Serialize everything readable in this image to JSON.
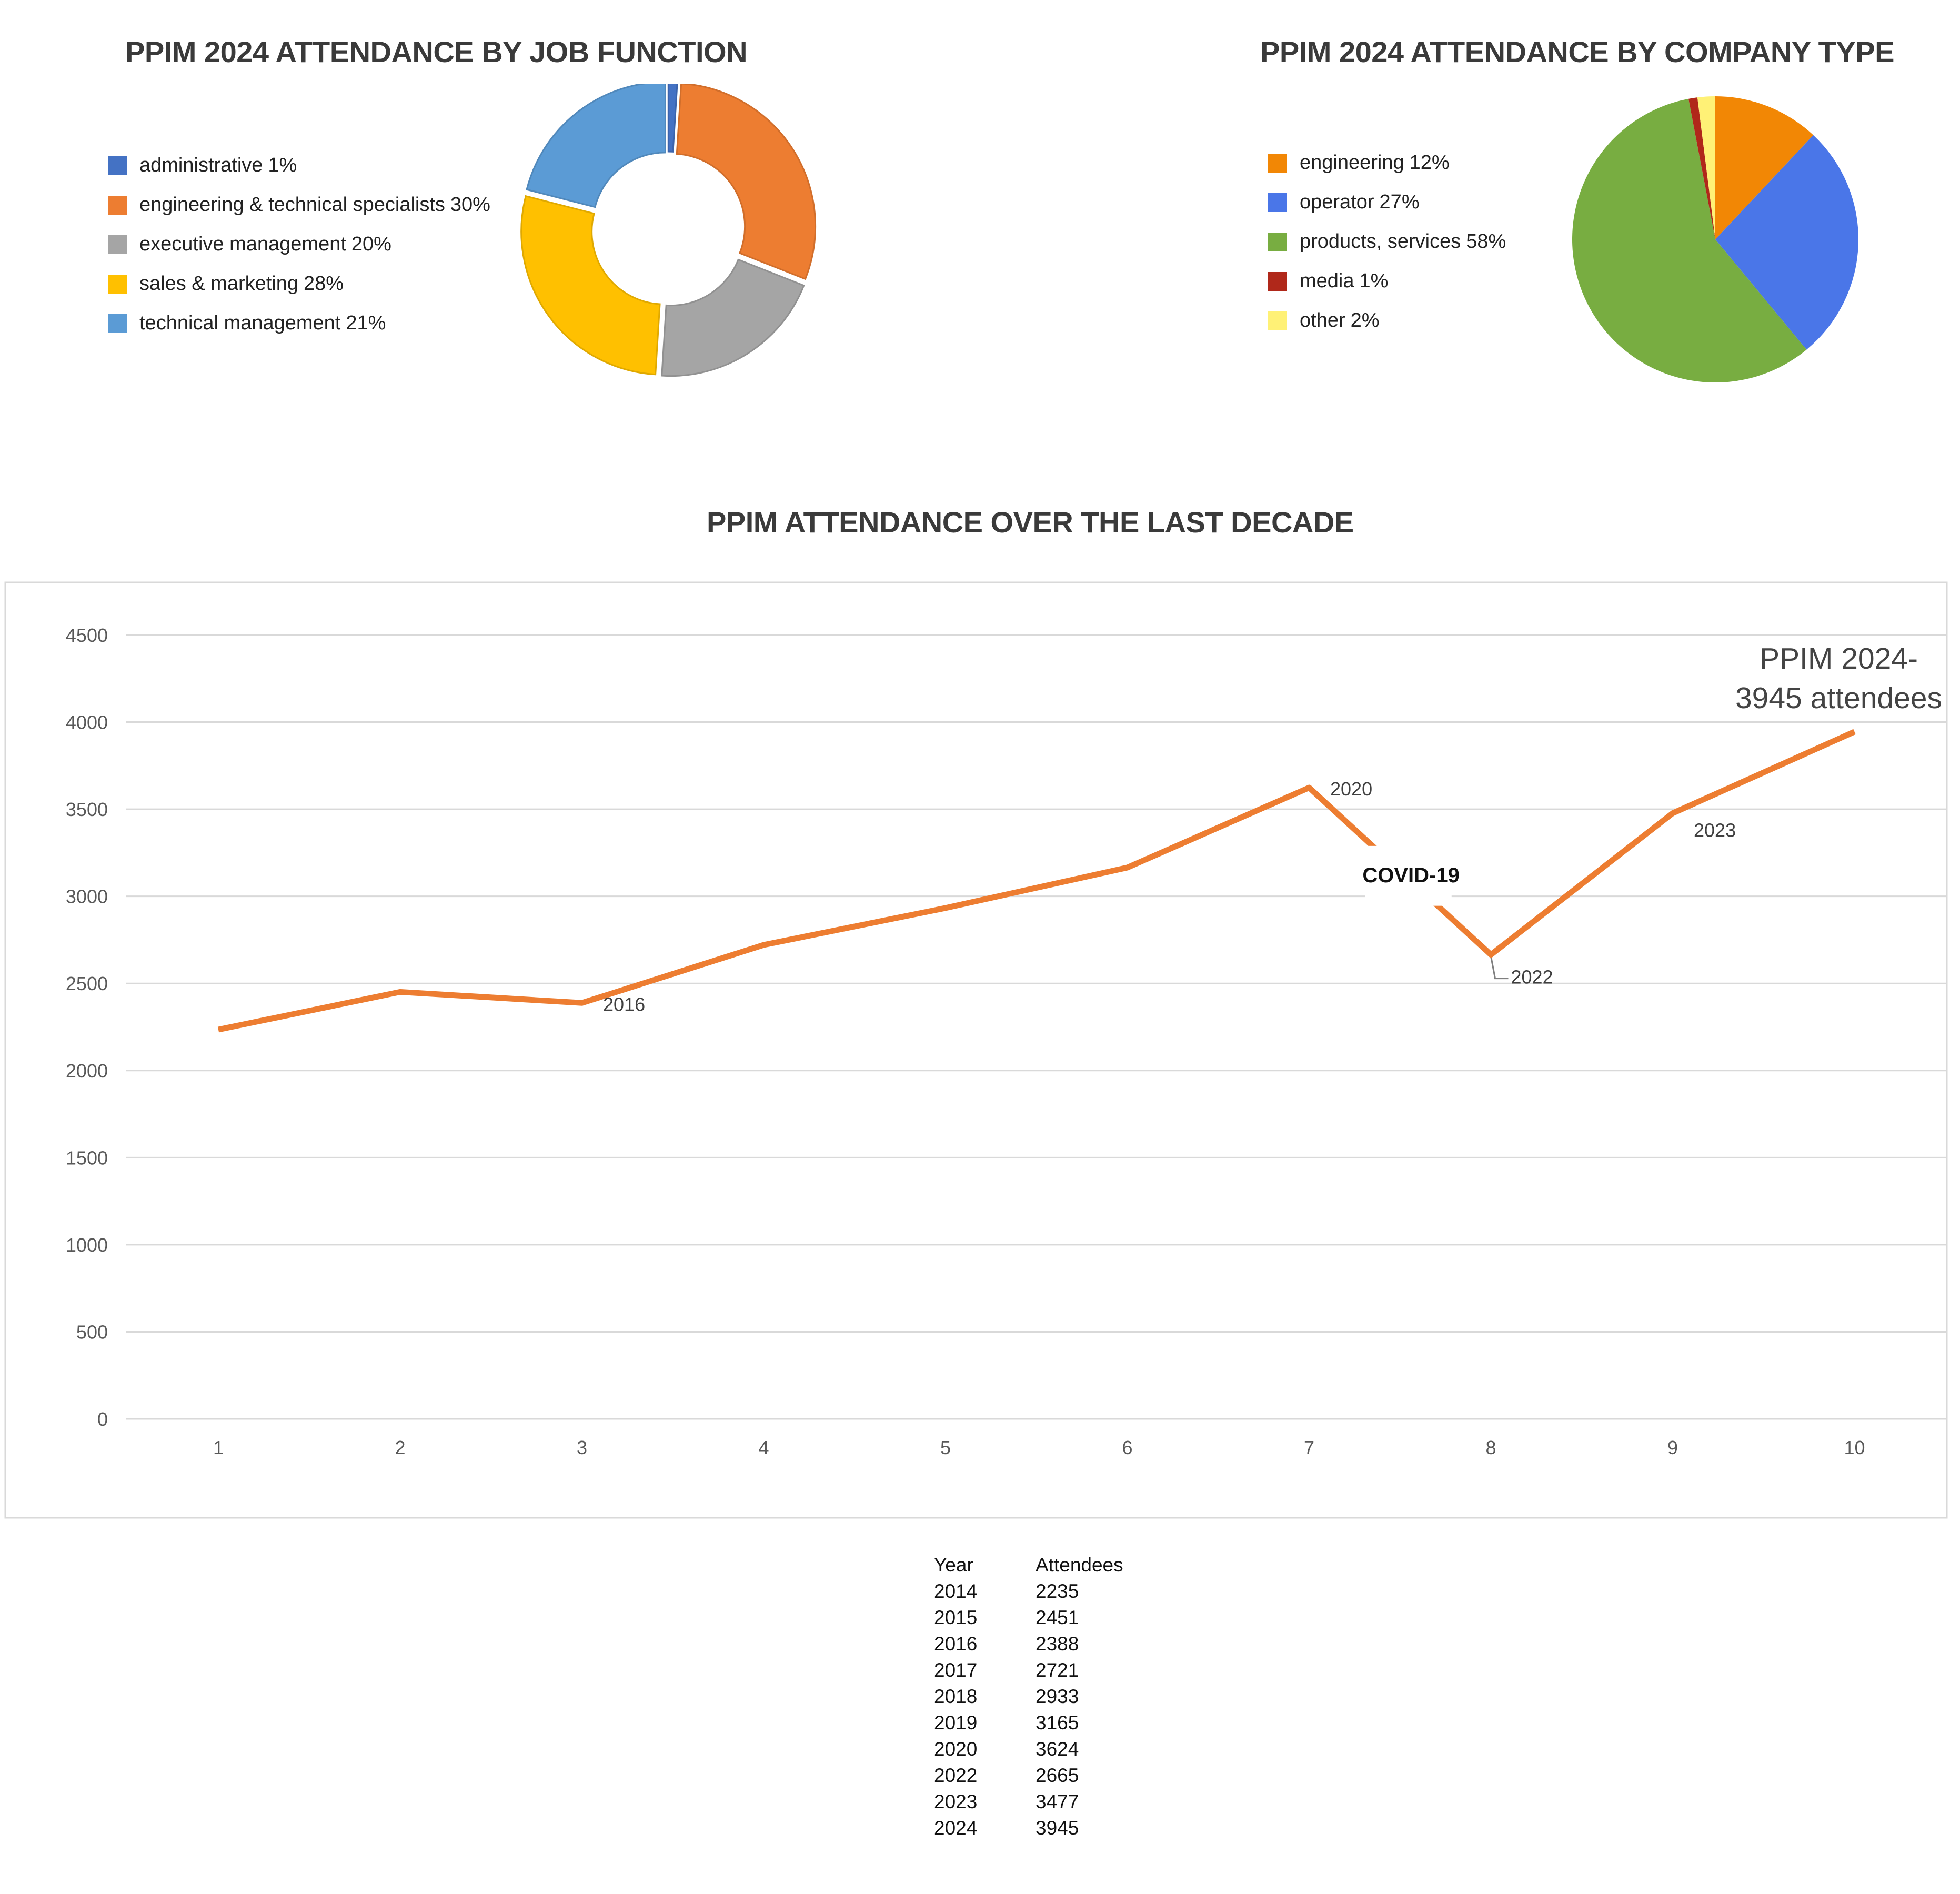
{
  "chart_data": [
    {
      "type": "pie",
      "variant": "donut",
      "title": "PPIM 2024 ATTENDANCE BY JOB FUNCTION",
      "legend_position": "left",
      "slices": [
        {
          "label": "administrative",
          "value": 1,
          "display": "1%",
          "color": "#4472c4"
        },
        {
          "label": "engineering & technical specialists",
          "value": 30,
          "display": "30%",
          "color": "#ed7d31"
        },
        {
          "label": "executive management",
          "value": 20,
          "display": "20%",
          "color": "#a5a5a5"
        },
        {
          "label": "sales & marketing",
          "value": 28,
          "display": "28%",
          "color": "#ffc000"
        },
        {
          "label": "technical management",
          "value": 21,
          "display": "21%",
          "color": "#5b9bd5"
        }
      ]
    },
    {
      "type": "pie",
      "title": "PPIM 2024 ATTENDANCE BY COMPANY TYPE",
      "legend_position": "left",
      "slices": [
        {
          "label": "engineering",
          "value": 12,
          "display": "12%",
          "color": "#f28705"
        },
        {
          "label": "operator",
          "value": 27,
          "display": "27%",
          "color": "#4a76e8"
        },
        {
          "label": "products, services",
          "value": 58,
          "display": "58%",
          "color": "#78ad41"
        },
        {
          "label": "media",
          "value": 1,
          "display": "1%",
          "color": "#b0281a"
        },
        {
          "label": "other",
          "value": 2,
          "display": "2%",
          "color": "#fff176"
        }
      ]
    },
    {
      "type": "line",
      "title": "PPIM ATTENDANCE OVER THE LAST DECADE",
      "xlabel": "",
      "ylabel": "",
      "x": [
        1,
        2,
        3,
        4,
        5,
        6,
        7,
        8,
        9,
        10
      ],
      "ylim": [
        0,
        4500
      ],
      "yticks": [
        0,
        500,
        1000,
        1500,
        2000,
        2500,
        3000,
        3500,
        4000,
        4500
      ],
      "grid": true,
      "series": [
        {
          "values": [
            2235,
            2451,
            2388,
            2721,
            2933,
            3165,
            3624,
            2665,
            3477,
            3945
          ],
          "color": "#ed7d31"
        }
      ],
      "point_labels": [
        {
          "x": 3,
          "text": "2016"
        },
        {
          "x": 7,
          "text": "2020"
        },
        {
          "x": 8,
          "text": "2022"
        },
        {
          "x": 9,
          "text": "2023"
        }
      ],
      "annotations": {
        "covid": "COVID-19",
        "callout_line1": "PPIM 2024-",
        "callout_line2": "3945 attendees"
      }
    }
  ],
  "attendance_table": {
    "headers": [
      "Year",
      "Attendees"
    ],
    "rows": [
      [
        "2014",
        "2235"
      ],
      [
        "2015",
        "2451"
      ],
      [
        "2016",
        "2388"
      ],
      [
        "2017",
        "2721"
      ],
      [
        "2018",
        "2933"
      ],
      [
        "2019",
        "3165"
      ],
      [
        "2020",
        "3624"
      ],
      [
        "2022",
        "2665"
      ],
      [
        "2023",
        "3477"
      ],
      [
        "2024",
        "3945"
      ]
    ]
  }
}
